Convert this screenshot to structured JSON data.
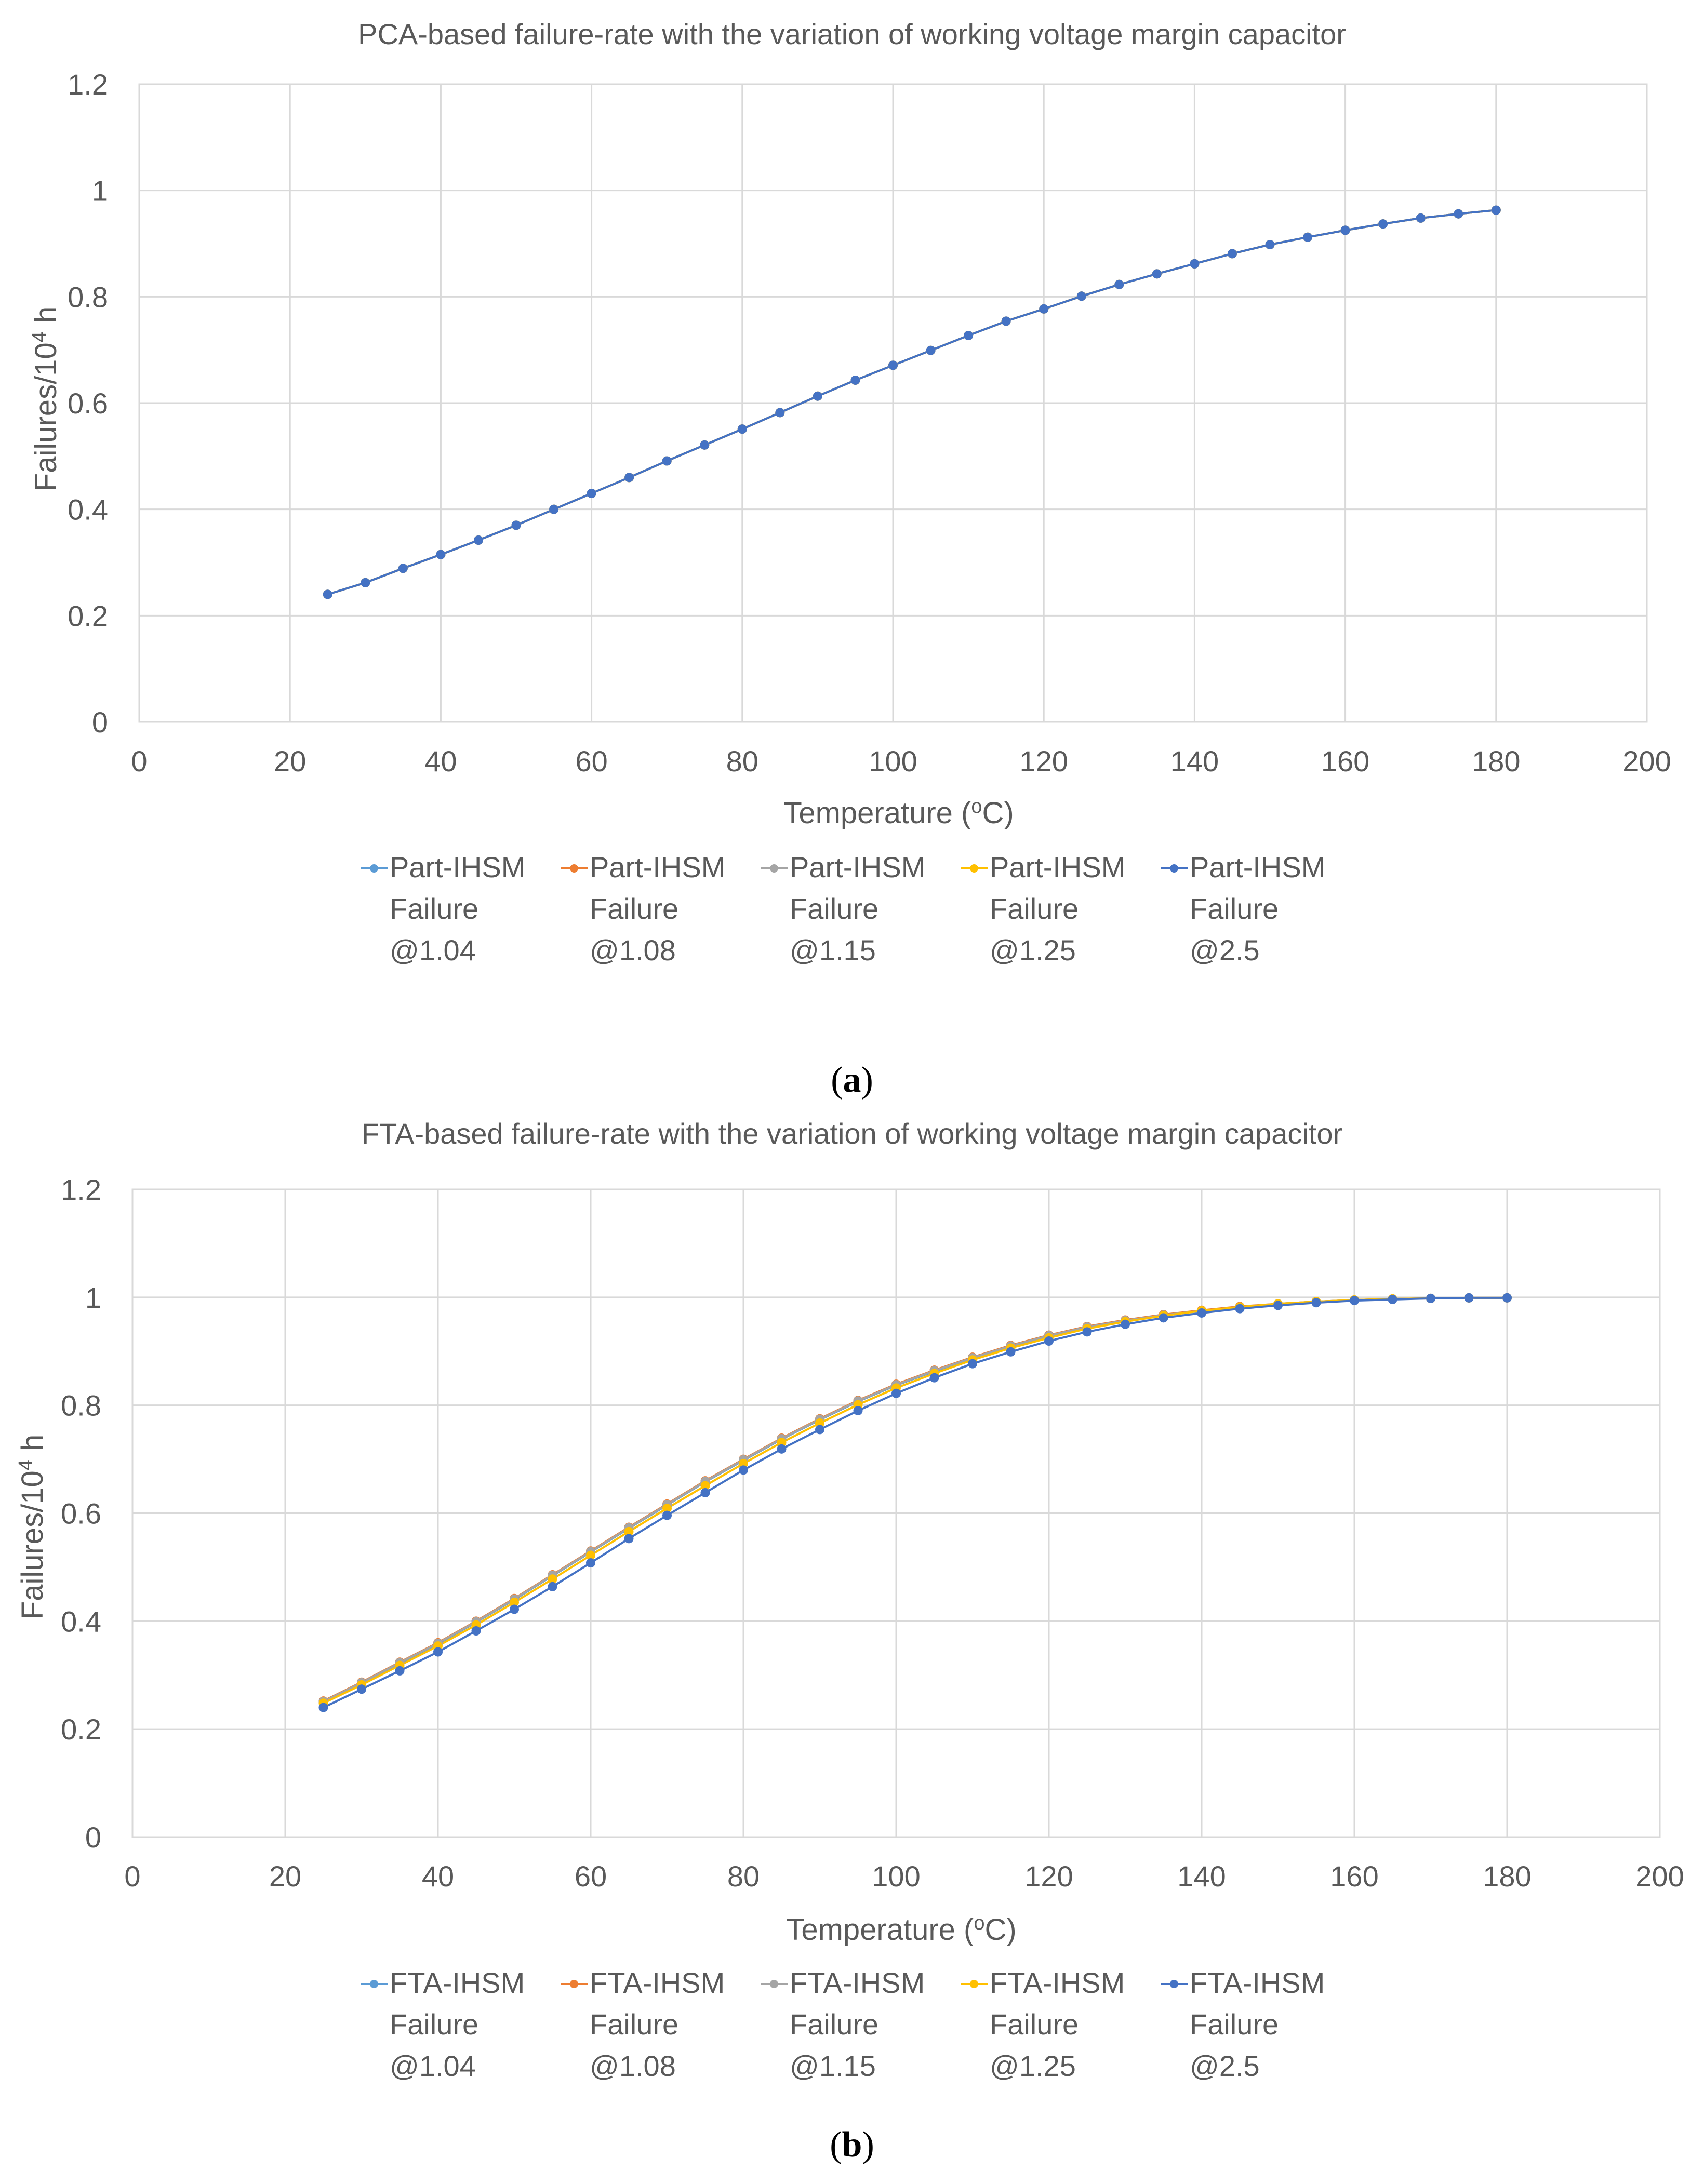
{
  "panels": [
    {
      "caption_pre": "(",
      "caption_letter": "a",
      "caption_post": ")",
      "legend": [
        {
          "label": "Part-IHSM\nFailure\n@1.04",
          "color": "#5B9BD5"
        },
        {
          "label": "Part-IHSM\nFailure\n@1.08",
          "color": "#ED7D31"
        },
        {
          "label": "Part-IHSM\nFailure\n@1.15",
          "color": "#A5A5A5"
        },
        {
          "label": "Part-IHSM\nFailure\n@1.25",
          "color": "#FFC000"
        },
        {
          "label": "Part-IHSM\nFailure\n@2.5",
          "color": "#4472C4"
        }
      ]
    },
    {
      "caption_pre": "(",
      "caption_letter": "b",
      "caption_post": ")",
      "legend": [
        {
          "label": "FTA-IHSM\nFailure\n@1.04",
          "color": "#5B9BD5"
        },
        {
          "label": "FTA-IHSM\nFailure\n@1.08",
          "color": "#ED7D31"
        },
        {
          "label": "FTA-IHSM\nFailure\n@1.15",
          "color": "#A5A5A5"
        },
        {
          "label": "FTA-IHSM\nFailure\n@1.25",
          "color": "#FFC000"
        },
        {
          "label": "FTA-IHSM\nFailure\n@2.5",
          "color": "#4472C4"
        }
      ]
    }
  ],
  "chart_data": [
    {
      "type": "line",
      "title": "PCA-based failure-rate with the variation of working voltage margin capacitor",
      "xlabel_pre": "Temperature (",
      "xlabel_sup": "o",
      "xlabel_post": "C)",
      "ylabel_pre": "Failures/10",
      "ylabel_sup": "4",
      "ylabel_post": " h",
      "xlim": [
        0,
        200
      ],
      "ylim": [
        0,
        1.2
      ],
      "xticks": [
        0,
        20,
        40,
        60,
        80,
        100,
        120,
        140,
        160,
        180,
        200
      ],
      "yticks": [
        0,
        0.2,
        0.4,
        0.6,
        0.8,
        1,
        1.2
      ],
      "ytick_labels": [
        "0",
        "0.2",
        "0.4",
        "0.6",
        "0.8",
        "1",
        "1.2"
      ],
      "grid": true,
      "legend_position": "bottom",
      "x": [
        25,
        30,
        35,
        40,
        45,
        50,
        55,
        60,
        65,
        70,
        75,
        80,
        85,
        90,
        95,
        100,
        105,
        110,
        115,
        120,
        125,
        130,
        135,
        140,
        145,
        150,
        155,
        160,
        165,
        170,
        175,
        180
      ],
      "series": [
        {
          "name": "Part-IHSM Failure @1.04",
          "color": "#5B9BD5",
          "values": [
            0.24,
            0.262,
            0.289,
            0.315,
            0.342,
            0.37,
            0.4,
            0.43,
            0.46,
            0.491,
            0.521,
            0.551,
            0.582,
            0.613,
            0.643,
            0.671,
            0.699,
            0.727,
            0.754,
            0.777,
            0.801,
            0.823,
            0.843,
            0.862,
            0.881,
            0.898,
            0.912,
            0.925,
            0.937,
            0.948,
            0.956,
            0.963
          ]
        },
        {
          "name": "Part-IHSM Failure @1.08",
          "color": "#ED7D31",
          "values": [
            0.24,
            0.262,
            0.289,
            0.315,
            0.342,
            0.37,
            0.4,
            0.43,
            0.46,
            0.491,
            0.521,
            0.551,
            0.582,
            0.613,
            0.643,
            0.671,
            0.699,
            0.727,
            0.754,
            0.777,
            0.801,
            0.823,
            0.843,
            0.862,
            0.881,
            0.898,
            0.912,
            0.925,
            0.937,
            0.948,
            0.956,
            0.963
          ]
        },
        {
          "name": "Part-IHSM Failure @1.15",
          "color": "#A5A5A5",
          "values": [
            0.24,
            0.262,
            0.289,
            0.315,
            0.342,
            0.37,
            0.4,
            0.43,
            0.46,
            0.491,
            0.521,
            0.551,
            0.582,
            0.613,
            0.643,
            0.671,
            0.699,
            0.727,
            0.754,
            0.777,
            0.801,
            0.823,
            0.843,
            0.862,
            0.881,
            0.898,
            0.912,
            0.925,
            0.937,
            0.948,
            0.956,
            0.963
          ]
        },
        {
          "name": "Part-IHSM Failure @1.25",
          "color": "#FFC000",
          "values": [
            0.24,
            0.262,
            0.289,
            0.315,
            0.342,
            0.37,
            0.4,
            0.43,
            0.46,
            0.491,
            0.521,
            0.551,
            0.582,
            0.613,
            0.643,
            0.671,
            0.699,
            0.727,
            0.754,
            0.777,
            0.801,
            0.823,
            0.843,
            0.862,
            0.881,
            0.898,
            0.912,
            0.925,
            0.937,
            0.948,
            0.956,
            0.963
          ]
        },
        {
          "name": "Part-IHSM Failure @2.5",
          "color": "#4472C4",
          "values": [
            0.24,
            0.262,
            0.289,
            0.315,
            0.342,
            0.37,
            0.4,
            0.43,
            0.46,
            0.491,
            0.521,
            0.551,
            0.582,
            0.613,
            0.643,
            0.671,
            0.699,
            0.727,
            0.754,
            0.777,
            0.801,
            0.823,
            0.843,
            0.862,
            0.881,
            0.898,
            0.912,
            0.925,
            0.937,
            0.948,
            0.956,
            0.963
          ]
        }
      ]
    },
    {
      "type": "line",
      "title": "FTA-based failure-rate with the variation of working voltage margin capacitor",
      "xlabel_pre": "Temperature (",
      "xlabel_sup": "o",
      "xlabel_post": "C)",
      "ylabel_pre": "Failures/10",
      "ylabel_sup": "4",
      "ylabel_post": " h",
      "xlim": [
        0,
        200
      ],
      "ylim": [
        0,
        1.2
      ],
      "xticks": [
        0,
        20,
        40,
        60,
        80,
        100,
        120,
        140,
        160,
        180,
        200
      ],
      "yticks": [
        0,
        0.2,
        0.4,
        0.6,
        0.8,
        1,
        1.2
      ],
      "ytick_labels": [
        "0",
        "0.2",
        "0.4",
        "0.6",
        "0.8",
        "1",
        "1.2"
      ],
      "grid": true,
      "legend_position": "bottom",
      "x": [
        25,
        30,
        35,
        40,
        45,
        50,
        55,
        60,
        65,
        70,
        75,
        80,
        85,
        90,
        95,
        100,
        105,
        110,
        115,
        120,
        125,
        130,
        135,
        140,
        145,
        150,
        155,
        160,
        165,
        170,
        175,
        180
      ],
      "series": [
        {
          "name": "FTA-IHSM Failure @1.04",
          "color": "#5B9BD5",
          "values": [
            0.25,
            0.285,
            0.322,
            0.358,
            0.398,
            0.44,
            0.484,
            0.528,
            0.572,
            0.615,
            0.658,
            0.698,
            0.737,
            0.773,
            0.807,
            0.837,
            0.863,
            0.887,
            0.909,
            0.928,
            0.944,
            0.956,
            0.967,
            0.975,
            0.982,
            0.988,
            0.992,
            0.995,
            0.997,
            0.998,
            0.999,
            0.999
          ]
        },
        {
          "name": "FTA-IHSM Failure @1.08",
          "color": "#ED7D31",
          "values": [
            0.252,
            0.287,
            0.324,
            0.36,
            0.4,
            0.442,
            0.486,
            0.53,
            0.574,
            0.617,
            0.66,
            0.7,
            0.739,
            0.775,
            0.809,
            0.839,
            0.865,
            0.889,
            0.911,
            0.93,
            0.946,
            0.958,
            0.968,
            0.976,
            0.983,
            0.988,
            0.992,
            0.995,
            0.997,
            0.998,
            0.999,
            0.999
          ]
        },
        {
          "name": "FTA-IHSM Failure @1.15",
          "color": "#A5A5A5",
          "values": [
            0.251,
            0.286,
            0.323,
            0.359,
            0.399,
            0.441,
            0.485,
            0.529,
            0.573,
            0.616,
            0.659,
            0.699,
            0.738,
            0.774,
            0.808,
            0.838,
            0.864,
            0.888,
            0.91,
            0.929,
            0.945,
            0.957,
            0.967,
            0.975,
            0.982,
            0.988,
            0.992,
            0.995,
            0.997,
            0.998,
            0.999,
            0.999
          ]
        },
        {
          "name": "FTA-IHSM Failure @1.25",
          "color": "#FFC000",
          "values": [
            0.248,
            0.282,
            0.318,
            0.354,
            0.393,
            0.435,
            0.478,
            0.522,
            0.566,
            0.609,
            0.651,
            0.692,
            0.731,
            0.767,
            0.801,
            0.832,
            0.859,
            0.884,
            0.906,
            0.925,
            0.942,
            0.955,
            0.966,
            0.975,
            0.982,
            0.988,
            0.992,
            0.995,
            0.997,
            0.998,
            0.999,
            0.999
          ]
        },
        {
          "name": "FTA-IHSM Failure @2.5",
          "color": "#4472C4",
          "values": [
            0.24,
            0.274,
            0.308,
            0.343,
            0.382,
            0.422,
            0.464,
            0.508,
            0.553,
            0.596,
            0.638,
            0.68,
            0.719,
            0.755,
            0.79,
            0.822,
            0.851,
            0.877,
            0.899,
            0.919,
            0.936,
            0.95,
            0.962,
            0.971,
            0.979,
            0.985,
            0.99,
            0.994,
            0.996,
            0.998,
            0.999,
            0.999
          ]
        }
      ]
    }
  ]
}
